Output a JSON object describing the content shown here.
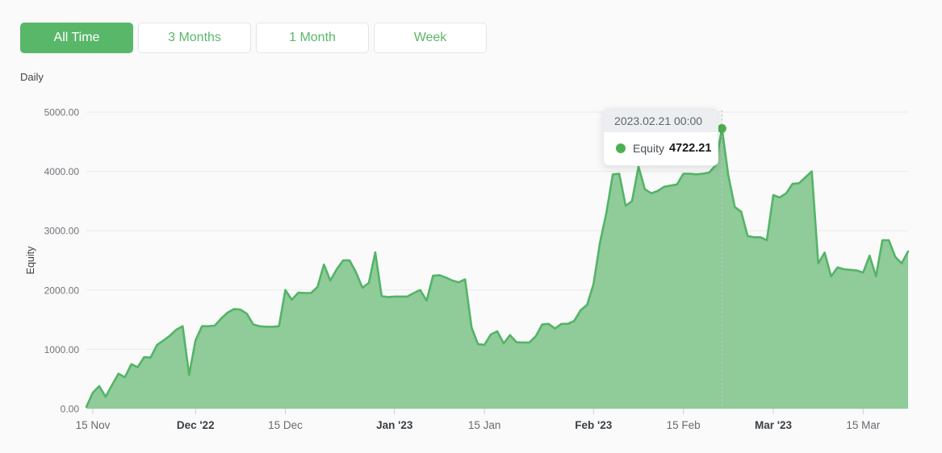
{
  "colors": {
    "accent_green": "#59b76a",
    "chart_line": "#53b467",
    "chart_fill": "#90cb9a",
    "marker": "#4cb052",
    "grid": "#e8e9ea",
    "tick": "#ccd0d3",
    "axis_text": "#666b70",
    "axis_text_bold": "#3a4045",
    "y_axis_text": "#70757a",
    "background": "#fafafa"
  },
  "period_buttons": [
    {
      "label": "All Time",
      "active": true
    },
    {
      "label": "3 Months",
      "active": false
    },
    {
      "label": "1 Month",
      "active": false
    },
    {
      "label": "Week",
      "active": false
    }
  ],
  "frequency_label": "Daily",
  "tooltip": {
    "date": "2023.02.21 00:00",
    "series": "Equity",
    "value": "4722.21"
  },
  "chart_data": {
    "type": "area",
    "title": "",
    "xlabel": "",
    "ylabel": "Equity",
    "series_name": "Equity",
    "interval": "daily",
    "x_start_date": "2022-11-14",
    "x_end_date": "2023-03-22",
    "ylim": [
      0,
      5000
    ],
    "grid": "horizontal",
    "legend_position": "none",
    "y_tick_labels": [
      "0.00",
      "1000.00",
      "2000.00",
      "3000.00",
      "4000.00",
      "5000.00"
    ],
    "x_ticks": [
      {
        "label": "15 Nov",
        "day": 1,
        "bold": false
      },
      {
        "label": "Dec '22",
        "day": 17,
        "bold": true
      },
      {
        "label": "15 Dec",
        "day": 31,
        "bold": false
      },
      {
        "label": "Jan '23",
        "day": 48,
        "bold": true
      },
      {
        "label": "15 Jan",
        "day": 62,
        "bold": false
      },
      {
        "label": "Feb '23",
        "day": 79,
        "bold": true
      },
      {
        "label": "15 Feb",
        "day": 93,
        "bold": false
      },
      {
        "label": "Mar '23",
        "day": 107,
        "bold": true
      },
      {
        "label": "15 Mar",
        "day": 121,
        "bold": false
      }
    ],
    "values": [
      30,
      270,
      380,
      200,
      400,
      590,
      530,
      750,
      700,
      870,
      860,
      1075,
      1150,
      1230,
      1330,
      1390,
      570,
      1150,
      1390,
      1390,
      1400,
      1520,
      1620,
      1680,
      1670,
      1600,
      1420,
      1390,
      1380,
      1380,
      1390,
      2000,
      1835,
      1955,
      1950,
      1950,
      2050,
      2430,
      2160,
      2350,
      2500,
      2500,
      2300,
      2040,
      2120,
      2635,
      1900,
      1880,
      1890,
      1890,
      1890,
      1950,
      2000,
      1820,
      2240,
      2250,
      2210,
      2160,
      2130,
      2180,
      1370,
      1090,
      1075,
      1250,
      1305,
      1100,
      1240,
      1120,
      1115,
      1115,
      1220,
      1420,
      1430,
      1350,
      1430,
      1430,
      1480,
      1660,
      1750,
      2100,
      2800,
      3300,
      3950,
      3960,
      3420,
      3500,
      4080,
      3700,
      3630,
      3670,
      3740,
      3760,
      3780,
      3960,
      3960,
      3950,
      3960,
      3980,
      4100,
      4722.21,
      3930,
      3400,
      3320,
      2910,
      2890,
      2890,
      2840,
      3600,
      3560,
      3630,
      3790,
      3800,
      3900,
      4000,
      2450,
      2630,
      2230,
      2380,
      2350,
      2340,
      2330,
      2295,
      2580,
      2230,
      2840,
      2840,
      2560,
      2450,
      2650
    ],
    "highlight": {
      "index": 99,
      "date_label": "2023.02.21 00:00",
      "value": 4722.21
    }
  }
}
